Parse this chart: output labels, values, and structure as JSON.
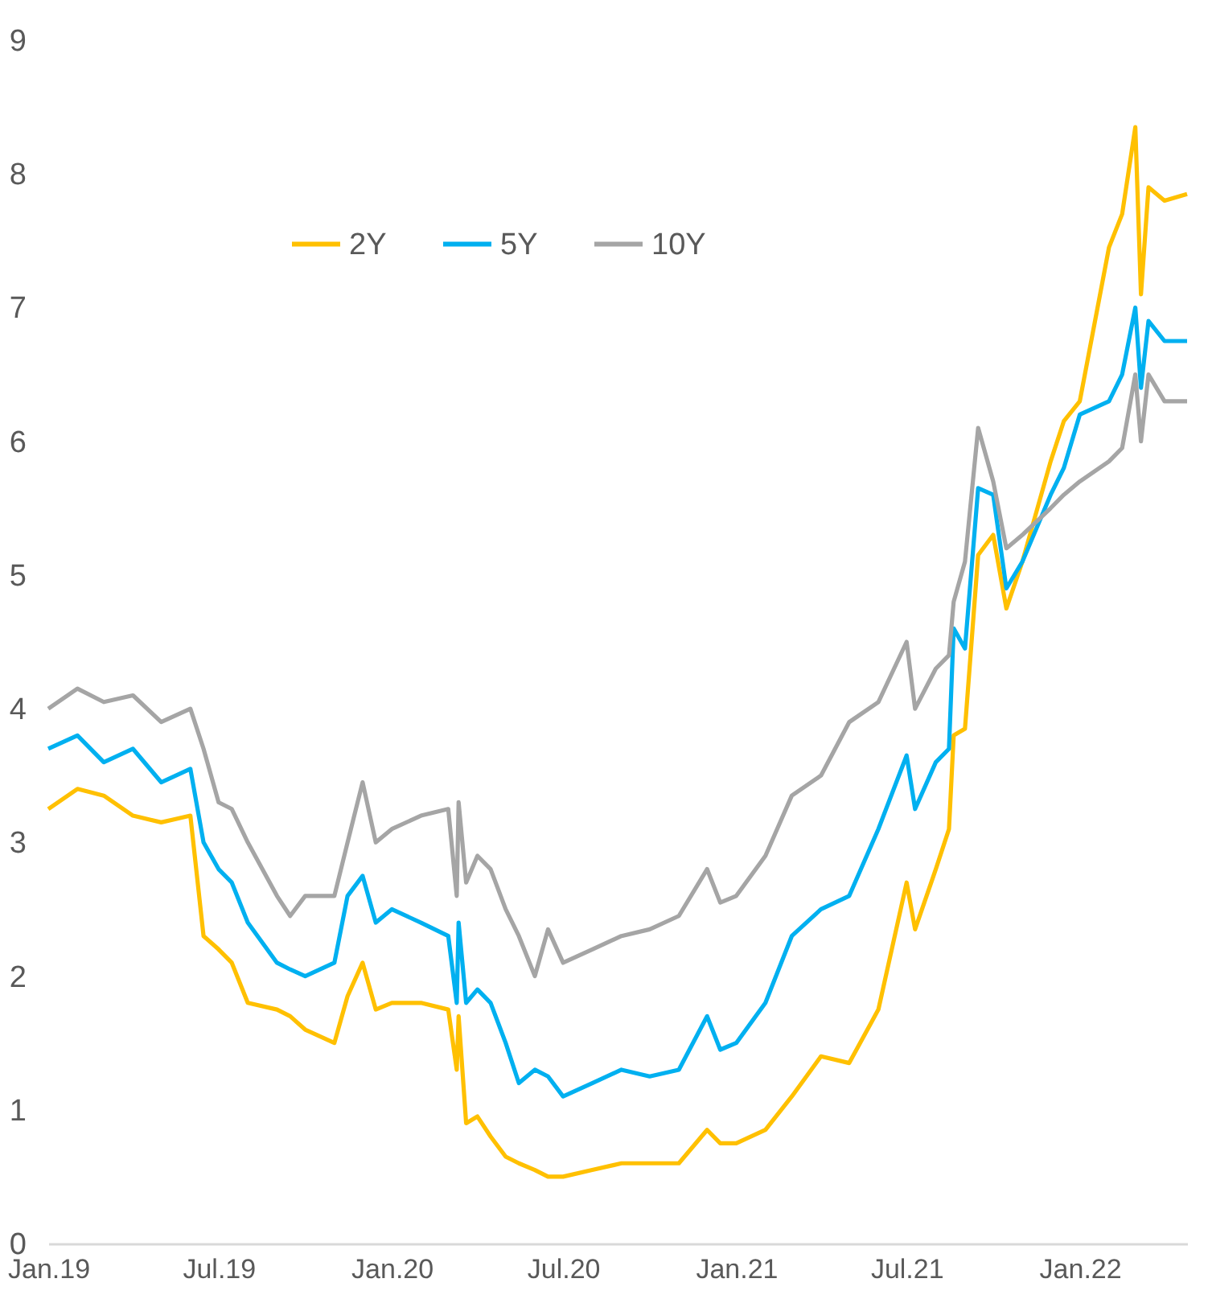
{
  "chart_data": {
    "type": "line",
    "x": [
      "2019-01-01",
      "2019-02-01",
      "2019-03-01",
      "2019-04-01",
      "2019-05-01",
      "2019-06-01",
      "2019-06-15",
      "2019-07-01",
      "2019-07-15",
      "2019-08-01",
      "2019-09-01",
      "2019-09-15",
      "2019-10-01",
      "2019-11-01",
      "2019-11-15",
      "2019-12-01",
      "2019-12-15",
      "2020-01-01",
      "2020-02-01",
      "2020-03-01",
      "2020-03-10",
      "2020-03-12",
      "2020-03-20",
      "2020-04-01",
      "2020-04-15",
      "2020-05-01",
      "2020-05-15",
      "2020-06-01",
      "2020-06-15",
      "2020-07-01",
      "2020-08-01",
      "2020-09-01",
      "2020-10-01",
      "2020-11-01",
      "2020-12-01",
      "2020-12-15",
      "2021-01-01",
      "2021-02-01",
      "2021-03-01",
      "2021-04-01",
      "2021-05-01",
      "2021-06-01",
      "2021-07-01",
      "2021-07-10",
      "2021-08-01",
      "2021-08-15",
      "2021-08-20",
      "2021-09-01",
      "2021-09-15",
      "2021-10-01",
      "2021-10-15",
      "2021-11-01",
      "2021-12-01",
      "2021-12-15",
      "2022-01-01",
      "2022-02-01",
      "2022-02-15",
      "2022-03-01",
      "2022-03-07",
      "2022-03-15",
      "2022-04-01",
      "2022-04-25"
    ],
    "series": [
      {
        "name": "2Y",
        "color": "#ffc000",
        "values": [
          3.25,
          3.4,
          3.35,
          3.2,
          3.15,
          3.2,
          2.3,
          2.2,
          2.1,
          1.8,
          1.75,
          1.7,
          1.6,
          1.5,
          1.85,
          2.1,
          1.75,
          1.8,
          1.8,
          1.75,
          1.3,
          1.7,
          0.9,
          0.95,
          0.8,
          0.65,
          0.6,
          0.55,
          0.5,
          0.5,
          0.55,
          0.6,
          0.6,
          0.6,
          0.85,
          0.75,
          0.75,
          0.85,
          1.1,
          1.4,
          1.35,
          1.75,
          2.7,
          2.35,
          2.8,
          3.1,
          3.8,
          3.85,
          5.15,
          5.3,
          4.75,
          5.1,
          5.85,
          6.15,
          6.3,
          7.45,
          7.7,
          8.35,
          7.1,
          7.9,
          7.8,
          7.85
        ]
      },
      {
        "name": "5Y",
        "color": "#00b0f0",
        "values": [
          3.7,
          3.8,
          3.6,
          3.7,
          3.45,
          3.55,
          3.0,
          2.8,
          2.7,
          2.4,
          2.1,
          2.05,
          2.0,
          2.1,
          2.6,
          2.75,
          2.4,
          2.5,
          2.4,
          2.3,
          1.8,
          2.4,
          1.8,
          1.9,
          1.8,
          1.5,
          1.2,
          1.3,
          1.25,
          1.1,
          1.2,
          1.3,
          1.25,
          1.3,
          1.7,
          1.45,
          1.5,
          1.8,
          2.3,
          2.5,
          2.6,
          3.1,
          3.65,
          3.25,
          3.6,
          3.7,
          4.6,
          4.45,
          5.65,
          5.6,
          4.9,
          5.1,
          5.6,
          5.8,
          6.2,
          6.3,
          6.5,
          7.0,
          6.4,
          6.9,
          6.75,
          6.75
        ]
      },
      {
        "name": "10Y",
        "color": "#a5a5a5",
        "values": [
          4.0,
          4.15,
          4.05,
          4.1,
          3.9,
          4.0,
          3.7,
          3.3,
          3.25,
          3.0,
          2.6,
          2.45,
          2.6,
          2.6,
          3.0,
          3.45,
          3.0,
          3.1,
          3.2,
          3.25,
          2.6,
          3.3,
          2.7,
          2.9,
          2.8,
          2.5,
          2.3,
          2.0,
          2.35,
          2.1,
          2.2,
          2.3,
          2.35,
          2.45,
          2.8,
          2.55,
          2.6,
          2.9,
          3.35,
          3.5,
          3.9,
          4.05,
          4.5,
          4.0,
          4.3,
          4.4,
          4.8,
          5.1,
          6.1,
          5.7,
          5.2,
          5.3,
          5.5,
          5.6,
          5.7,
          5.85,
          5.95,
          6.5,
          6.0,
          6.5,
          6.3,
          6.3
        ]
      }
    ],
    "xlim": [
      "2019-01-01",
      "2022-04-25"
    ],
    "xticks": [
      {
        "value": "2019-01-01",
        "label": "Jan.19"
      },
      {
        "value": "2019-07-01",
        "label": "Jul.19"
      },
      {
        "value": "2020-01-01",
        "label": "Jan.20"
      },
      {
        "value": "2020-07-01",
        "label": "Jul.20"
      },
      {
        "value": "2021-01-01",
        "label": "Jan.21"
      },
      {
        "value": "2021-07-01",
        "label": "Jul.21"
      },
      {
        "value": "2022-01-01",
        "label": "Jan.22"
      }
    ],
    "ylim": [
      0,
      9
    ],
    "yticks": [
      0,
      1,
      2,
      3,
      4,
      5,
      6,
      7,
      8,
      9
    ],
    "legend": "top left",
    "line_style": "solid"
  }
}
